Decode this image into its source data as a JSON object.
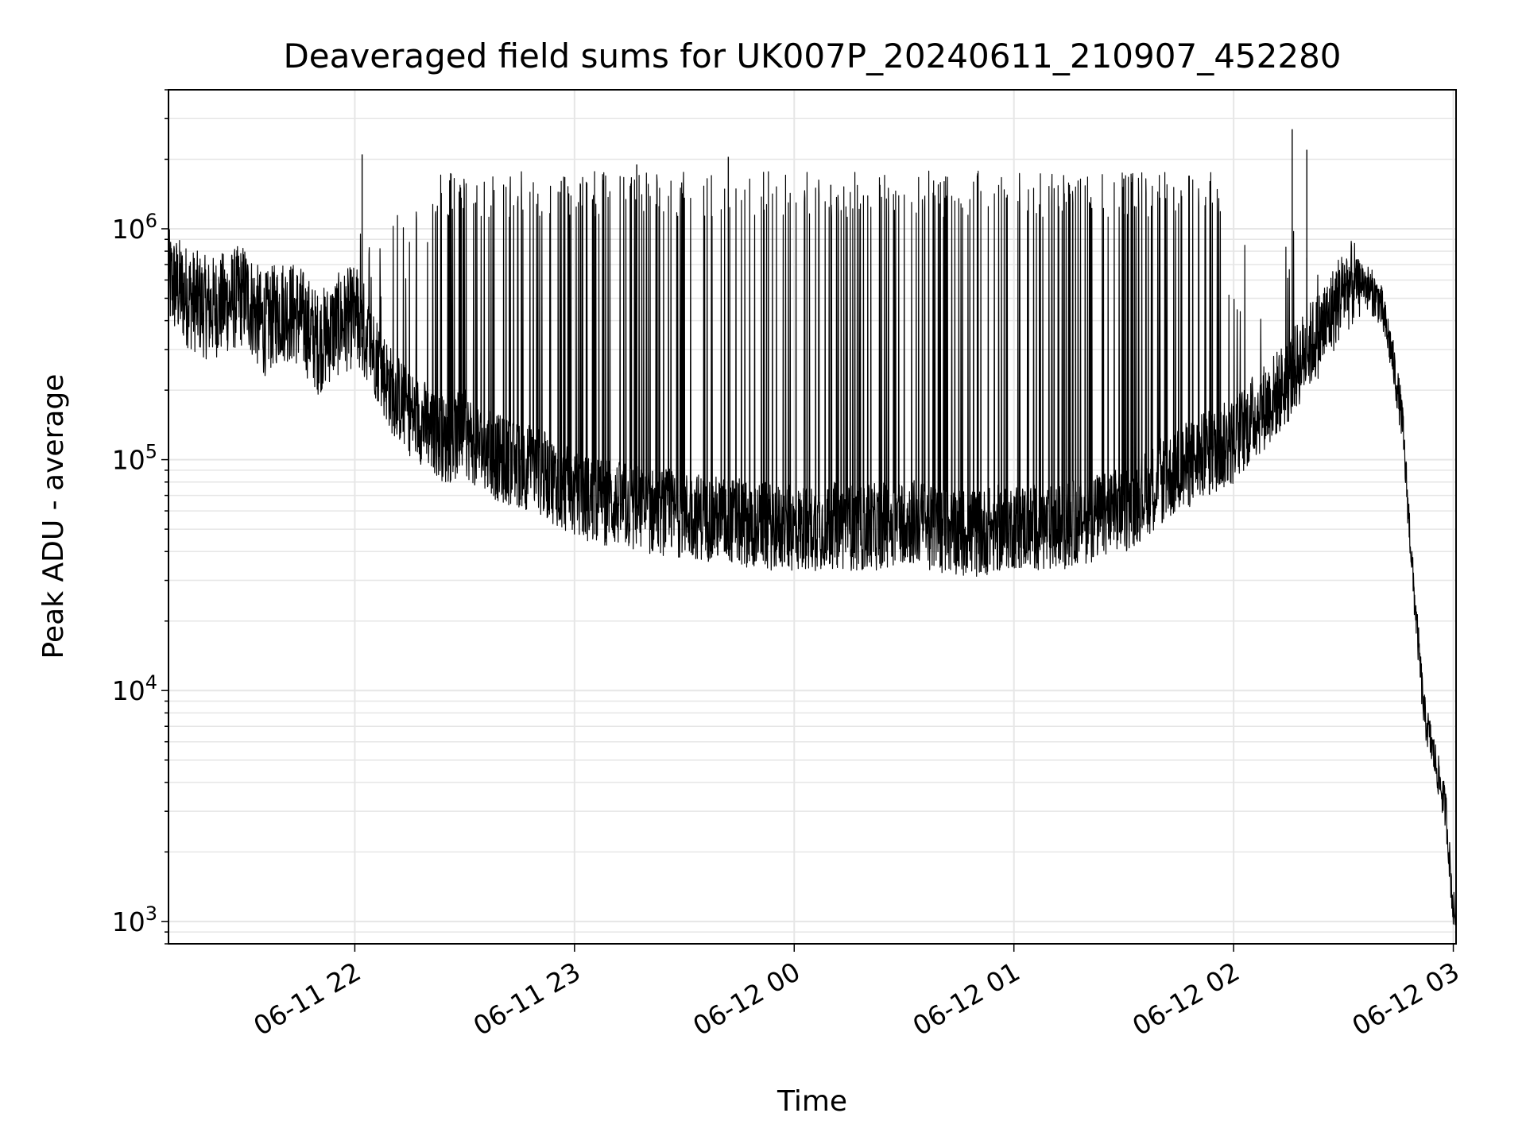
{
  "chart_data": {
    "type": "line",
    "title": "Deaveraged field sums for UK007P_20240611_210907_452280",
    "xlabel": "Time",
    "ylabel": "Peak ADU - average",
    "yscale": "log",
    "ylim": [
      800,
      4000000
    ],
    "xlim": [
      "2024-06-11 21:09:07",
      "2024-06-12 03:00:45"
    ],
    "grid": true,
    "line_color": "#000000",
    "grid_color": "#e6e6e6",
    "x_ticks": [
      {
        "value": "2024-06-11 22:00",
        "label": "06-11 22"
      },
      {
        "value": "2024-06-11 23:00",
        "label": "06-11 23"
      },
      {
        "value": "2024-06-12 00:00",
        "label": "06-12 00"
      },
      {
        "value": "2024-06-12 01:00",
        "label": "06-12 01"
      },
      {
        "value": "2024-06-12 02:00",
        "label": "06-12 02"
      },
      {
        "value": "2024-06-12 03:00",
        "label": "06-12 03"
      }
    ],
    "y_ticks": [
      {
        "value": 1000,
        "base": "10",
        "exp": "3"
      },
      {
        "value": 10000,
        "base": "10",
        "exp": "4"
      },
      {
        "value": 100000,
        "base": "10",
        "exp": "5"
      },
      {
        "value": 1000000,
        "base": "10",
        "exp": "6"
      }
    ],
    "series": [
      {
        "x": [
          "2024-06-11 21:09",
          "2024-06-11 21:15",
          "2024-06-11 21:20",
          "2024-06-11 21:25",
          "2024-06-11 21:30",
          "2024-06-11 21:35",
          "2024-06-11 21:40",
          "2024-06-11 21:45",
          "2024-06-11 21:50",
          "2024-06-11 21:55",
          "2024-06-11 22:00",
          "2024-06-11 22:05",
          "2024-06-11 22:10",
          "2024-06-11 22:15",
          "2024-06-11 22:20",
          "2024-06-11 22:25",
          "2024-06-11 22:30",
          "2024-06-11 22:35",
          "2024-06-11 22:40",
          "2024-06-11 22:45",
          "2024-06-11 22:50",
          "2024-06-11 22:55",
          "2024-06-11 23:00",
          "2024-06-11 23:10",
          "2024-06-11 23:20",
          "2024-06-11 23:30",
          "2024-06-11 23:40",
          "2024-06-11 23:50",
          "2024-06-12 00:00",
          "2024-06-12 00:10",
          "2024-06-12 00:20",
          "2024-06-12 00:30",
          "2024-06-12 00:40",
          "2024-06-12 00:50",
          "2024-06-12 01:00",
          "2024-06-12 01:10",
          "2024-06-12 01:20",
          "2024-06-12 01:30",
          "2024-06-12 01:40",
          "2024-06-12 01:50",
          "2024-06-12 02:00",
          "2024-06-12 02:05",
          "2024-06-12 02:10",
          "2024-06-12 02:15",
          "2024-06-12 02:20",
          "2024-06-12 02:25",
          "2024-06-12 02:30",
          "2024-06-12 02:35",
          "2024-06-12 02:40",
          "2024-06-12 02:43",
          "2024-06-12 02:46",
          "2024-06-12 02:49",
          "2024-06-12 02:52",
          "2024-06-12 02:55",
          "2024-06-12 02:58",
          "2024-06-12 03:00"
        ],
        "y": [
          600000,
          500000,
          450000,
          480000,
          520000,
          380000,
          450000,
          420000,
          320000,
          380000,
          420000,
          300000,
          200000,
          160000,
          140000,
          120000,
          130000,
          110000,
          100000,
          95000,
          90000,
          80000,
          70000,
          65000,
          60000,
          58000,
          55000,
          52000,
          50000,
          52000,
          50000,
          55000,
          50000,
          48000,
          52000,
          50000,
          55000,
          60000,
          80000,
          100000,
          120000,
          150000,
          180000,
          220000,
          300000,
          380000,
          550000,
          600000,
          480000,
          300000,
          150000,
          30000,
          8000,
          5000,
          3000,
          1100
        ]
      }
    ],
    "spikes": [
      {
        "x": "2024-06-11 22:02",
        "y": 2100000
      },
      {
        "x": "2024-06-11 22:33",
        "y": 1300000
      },
      {
        "x": "2024-06-11 23:17",
        "y": 1900000
      },
      {
        "x": "2024-06-11 23:42",
        "y": 2050000
      },
      {
        "x": "2024-06-12 00:10",
        "y": 1550000
      },
      {
        "x": "2024-06-12 00:50",
        "y": 1700000
      },
      {
        "x": "2024-06-12 01:30",
        "y": 1650000
      },
      {
        "x": "2024-06-12 02:16",
        "y": 2700000
      },
      {
        "x": "2024-06-12 02:20",
        "y": 2200000
      }
    ]
  }
}
